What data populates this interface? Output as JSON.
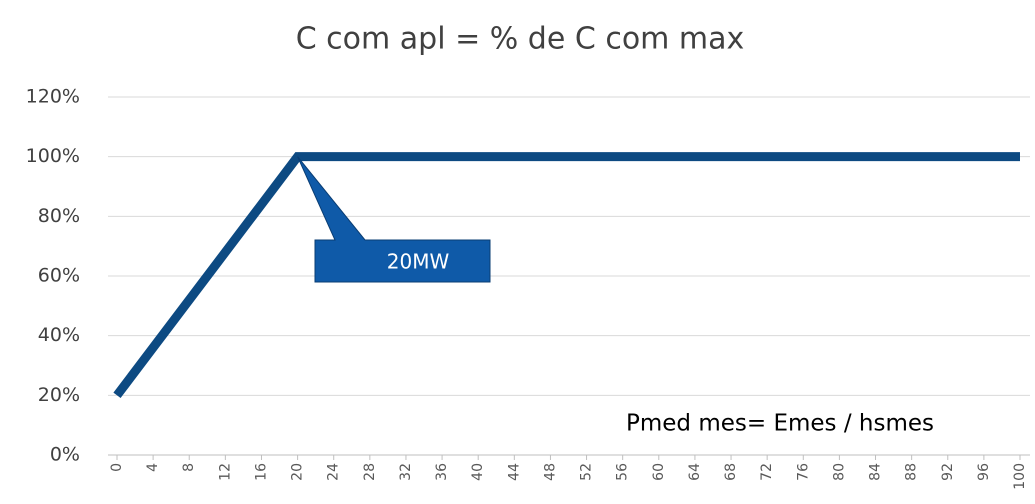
{
  "chart_data": {
    "type": "line",
    "title": "C com apl = % de C com max",
    "x": [
      0,
      20,
      100
    ],
    "series": [
      {
        "name": "C com apl",
        "color": "#0d4a82",
        "values": [
          20,
          100,
          100
        ]
      }
    ],
    "xlim": [
      0,
      100
    ],
    "xticks": [
      0,
      4,
      8,
      12,
      16,
      20,
      24,
      28,
      32,
      36,
      40,
      44,
      48,
      52,
      56,
      60,
      64,
      68,
      72,
      76,
      80,
      84,
      88,
      92,
      96,
      100
    ],
    "ylim": [
      0,
      120
    ],
    "yticks": [
      {
        "value": 0,
        "label": "0%"
      },
      {
        "value": 20,
        "label": "20%"
      },
      {
        "value": 40,
        "label": "40%"
      },
      {
        "value": 60,
        "label": "60%"
      },
      {
        "value": 80,
        "label": "80%"
      },
      {
        "value": 100,
        "label": "100%"
      },
      {
        "value": 120,
        "label": "120%"
      }
    ],
    "grid": true,
    "annotations": [
      "20MW",
      "Pmed mes= Emes / hsmes"
    ],
    "callout_color": "#0f5aa8"
  }
}
